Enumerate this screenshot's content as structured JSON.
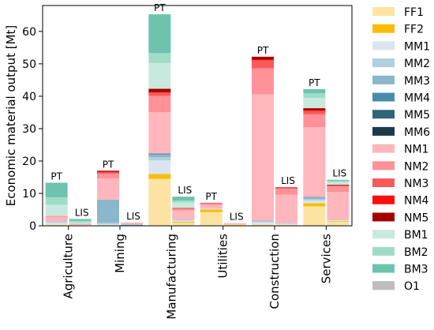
{
  "chart_data": {
    "type": "bar",
    "stacked": true,
    "ylabel": "Economic material output [Mt]",
    "ylim": [
      0,
      68
    ],
    "yticks": [
      0,
      10,
      20,
      30,
      40,
      50,
      60
    ],
    "grid": false,
    "legend_position": "right",
    "categories": [
      "Agriculture",
      "Mining",
      "Manufacturing",
      "Utilities",
      "Construction",
      "Services"
    ],
    "bar_labels": [
      "PT",
      "LIS"
    ],
    "series": [
      {
        "name": "FF1",
        "color": "#fde3a1",
        "PT": [
          0.4,
          0.2,
          14.5,
          4.2,
          0.5,
          6.0
        ],
        "LIS": [
          0.1,
          0.1,
          0.9,
          0.4,
          0.4,
          1.3
        ]
      },
      {
        "name": "FF2",
        "color": "#fbbc05",
        "PT": [
          0.0,
          0.0,
          1.5,
          0.8,
          0.0,
          1.0
        ],
        "LIS": [
          0.0,
          0.0,
          0.3,
          0.1,
          0.0,
          0.2
        ]
      },
      {
        "name": "MM1",
        "color": "#d9e6ee",
        "PT": [
          0.5,
          0.3,
          4.2,
          0.2,
          0.6,
          0.8
        ],
        "LIS": [
          0.1,
          0.0,
          0.4,
          0.0,
          0.2,
          0.2
        ]
      },
      {
        "name": "MM2",
        "color": "#b0cfdf",
        "PT": [
          0.3,
          0.4,
          1.0,
          0.1,
          0.3,
          0.4
        ],
        "LIS": [
          0.0,
          0.0,
          0.2,
          0.0,
          0.1,
          0.1
        ]
      },
      {
        "name": "MM3",
        "color": "#8ab7cc",
        "PT": [
          0.0,
          7.2,
          0.8,
          0.0,
          0.2,
          0.6
        ],
        "LIS": [
          0.0,
          0.3,
          0.1,
          0.0,
          0.1,
          0.1
        ]
      },
      {
        "name": "MM4",
        "color": "#4a8bab",
        "PT": [
          0.0,
          0.0,
          0.2,
          0.0,
          0.0,
          0.1
        ],
        "LIS": [
          0.0,
          0.0,
          0.0,
          0.0,
          0.0,
          0.0
        ]
      },
      {
        "name": "MM5",
        "color": "#306479",
        "PT": [
          0.0,
          0.0,
          0.1,
          0.0,
          0.0,
          0.0
        ],
        "LIS": [
          0.0,
          0.0,
          0.0,
          0.0,
          0.0,
          0.0
        ]
      },
      {
        "name": "MM6",
        "color": "#1e3a4a",
        "PT": [
          0.0,
          0.0,
          0.0,
          0.0,
          0.0,
          0.0
        ],
        "LIS": [
          0.0,
          0.0,
          0.0,
          0.0,
          0.0,
          0.0
        ]
      },
      {
        "name": "NM1",
        "color": "#ffb6bc",
        "PT": [
          1.5,
          6.5,
          12.8,
          1.1,
          39.0,
          21.5
        ],
        "LIS": [
          0.3,
          0.5,
          2.8,
          0.2,
          8.8,
          8.5
        ]
      },
      {
        "name": "NM2",
        "color": "#ff9198",
        "PT": [
          0.2,
          1.5,
          5.0,
          0.5,
          8.0,
          4.0
        ],
        "LIS": [
          0.1,
          0.1,
          0.5,
          0.1,
          1.8,
          1.8
        ]
      },
      {
        "name": "NM3",
        "color": "#f85a5a",
        "PT": [
          0.1,
          0.5,
          1.0,
          0.1,
          2.5,
          1.0
        ],
        "LIS": [
          0.0,
          0.0,
          0.2,
          0.0,
          0.4,
          0.3
        ]
      },
      {
        "name": "NM4",
        "color": "#ff0c0c",
        "PT": [
          0.0,
          0.1,
          0.2,
          0.0,
          0.2,
          0.3
        ],
        "LIS": [
          0.0,
          0.0,
          0.0,
          0.0,
          0.0,
          0.0
        ]
      },
      {
        "name": "NM5",
        "color": "#a50000",
        "PT": [
          0.0,
          0.3,
          1.0,
          0.1,
          0.9,
          0.6
        ],
        "LIS": [
          0.0,
          0.0,
          0.1,
          0.0,
          0.1,
          0.2
        ]
      },
      {
        "name": "BM1",
        "color": "#c8e9dd",
        "PT": [
          3.5,
          0.0,
          8.0,
          0.0,
          0.0,
          3.2
        ],
        "LIS": [
          0.5,
          0.0,
          1.7,
          0.0,
          0.0,
          0.8
        ]
      },
      {
        "name": "BM2",
        "color": "#9fdcc6",
        "PT": [
          2.3,
          0.0,
          3.0,
          0.0,
          0.0,
          1.4
        ],
        "LIS": [
          0.4,
          0.0,
          0.6,
          0.0,
          0.0,
          0.4
        ]
      },
      {
        "name": "BM3",
        "color": "#6dc3ae",
        "PT": [
          4.5,
          0.0,
          12.0,
          0.0,
          0.0,
          1.3
        ],
        "LIS": [
          0.6,
          0.0,
          1.2,
          0.0,
          0.0,
          0.3
        ]
      },
      {
        "name": "O1",
        "color": "#bdbdbd",
        "PT": [
          0.0,
          0.0,
          0.0,
          0.0,
          0.0,
          0.0
        ],
        "LIS": [
          0.0,
          0.0,
          0.0,
          0.0,
          0.0,
          0.0
        ]
      }
    ]
  }
}
